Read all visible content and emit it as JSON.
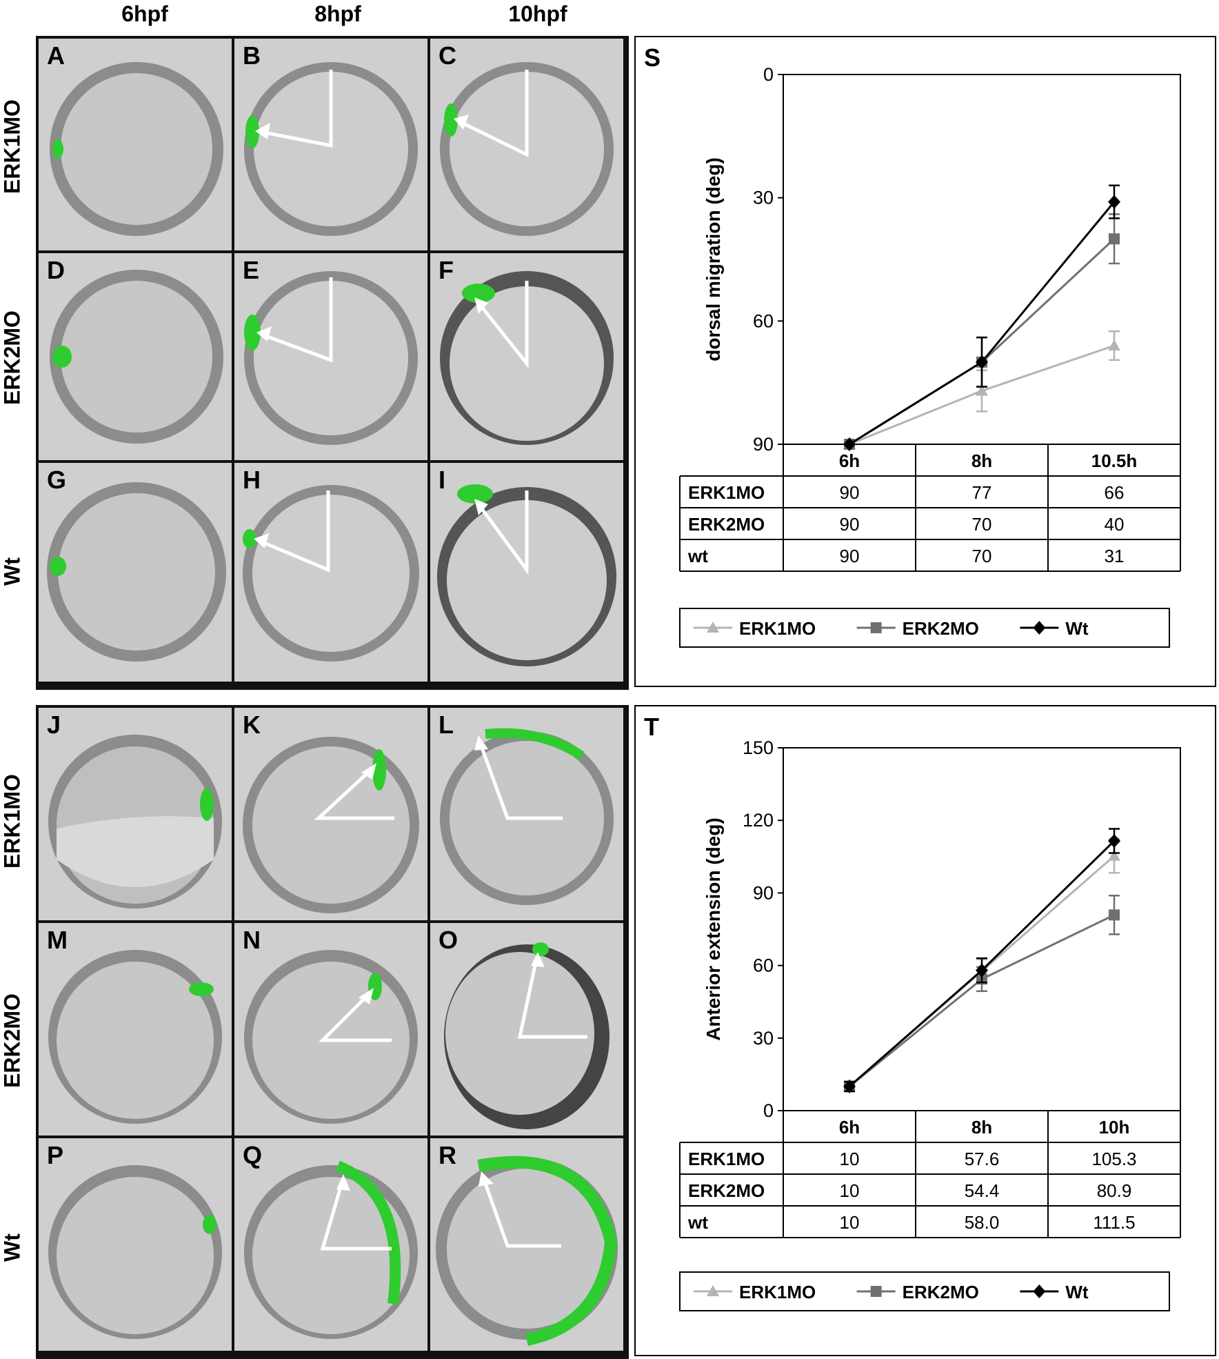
{
  "columns": [
    "6hpf",
    "8hpf",
    "10hpf"
  ],
  "top_rows": [
    "ERK1MO",
    "ERK2MO",
    "Wt"
  ],
  "bottom_rows": [
    "ERK1MO",
    "ERK2MO",
    "Wt"
  ],
  "top_panels": [
    "A",
    "B",
    "C",
    "D",
    "E",
    "F",
    "G",
    "H",
    "I"
  ],
  "bottom_panels": [
    "J",
    "K",
    "L",
    "M",
    "N",
    "O",
    "P",
    "Q",
    "R"
  ],
  "colors": {
    "erk1": "#b4b4b4",
    "erk2": "#707070",
    "wt": "#000000",
    "gfp": "#2ecc2e"
  },
  "chart_data": [
    {
      "panel": "S",
      "type": "line",
      "title": "",
      "ylabel": "dorsal migration (deg)",
      "ylim": [
        0,
        90
      ],
      "y_inverted": true,
      "yticks": [
        0,
        30,
        60,
        90
      ],
      "categories": [
        "6h",
        "8h",
        "10.5h"
      ],
      "series": [
        {
          "name": "ERK1MO",
          "values": [
            90,
            77,
            66
          ],
          "errors": [
            0,
            5,
            3.5
          ],
          "marker": "triangle",
          "color": "#b4b4b4"
        },
        {
          "name": "ERK2MO",
          "values": [
            90,
            70,
            40
          ],
          "errors": [
            0,
            6,
            6
          ],
          "marker": "square",
          "color": "#707070"
        },
        {
          "name": "Wt",
          "values": [
            90,
            70,
            31
          ],
          "errors": [
            0,
            6,
            4
          ],
          "marker": "diamond",
          "color": "#000000"
        }
      ],
      "table": {
        "header": [
          "6h",
          "8h",
          "10.5h"
        ],
        "rows": [
          {
            "label": "ERK1MO",
            "cells": [
              "90",
              "77",
              "66"
            ]
          },
          {
            "label": "ERK2MO",
            "cells": [
              "90",
              "70",
              "40"
            ]
          },
          {
            "label": "wt",
            "cells": [
              "90",
              "70",
              "31"
            ]
          }
        ]
      },
      "legend": [
        "ERK1MO",
        "ERK2MO",
        "Wt"
      ]
    },
    {
      "panel": "T",
      "type": "line",
      "title": "",
      "ylabel": "Anterior extension (deg)",
      "ylim": [
        0,
        150
      ],
      "y_inverted": false,
      "yticks": [
        0,
        30,
        60,
        90,
        120,
        150
      ],
      "categories": [
        "6h",
        "8h",
        "10h"
      ],
      "series": [
        {
          "name": "ERK1MO",
          "values": [
            10,
            57.6,
            105.3
          ],
          "errors": [
            2,
            5,
            7
          ],
          "marker": "triangle",
          "color": "#b4b4b4"
        },
        {
          "name": "ERK2MO",
          "values": [
            10,
            54.4,
            80.9
          ],
          "errors": [
            2,
            5,
            8
          ],
          "marker": "square",
          "color": "#707070"
        },
        {
          "name": "Wt",
          "values": [
            10,
            58.0,
            111.5
          ],
          "errors": [
            2,
            5,
            5
          ],
          "marker": "diamond",
          "color": "#000000"
        }
      ],
      "table": {
        "header": [
          "6h",
          "8h",
          "10h"
        ],
        "rows": [
          {
            "label": "ERK1MO",
            "cells": [
              "10",
              "57.6",
              "105.3"
            ]
          },
          {
            "label": "ERK2MO",
            "cells": [
              "10",
              "54.4",
              "80.9"
            ]
          },
          {
            "label": "wt",
            "cells": [
              "10",
              "58.0",
              "111.5"
            ]
          }
        ]
      },
      "legend": [
        "ERK1MO",
        "ERK2MO",
        "Wt"
      ]
    }
  ]
}
